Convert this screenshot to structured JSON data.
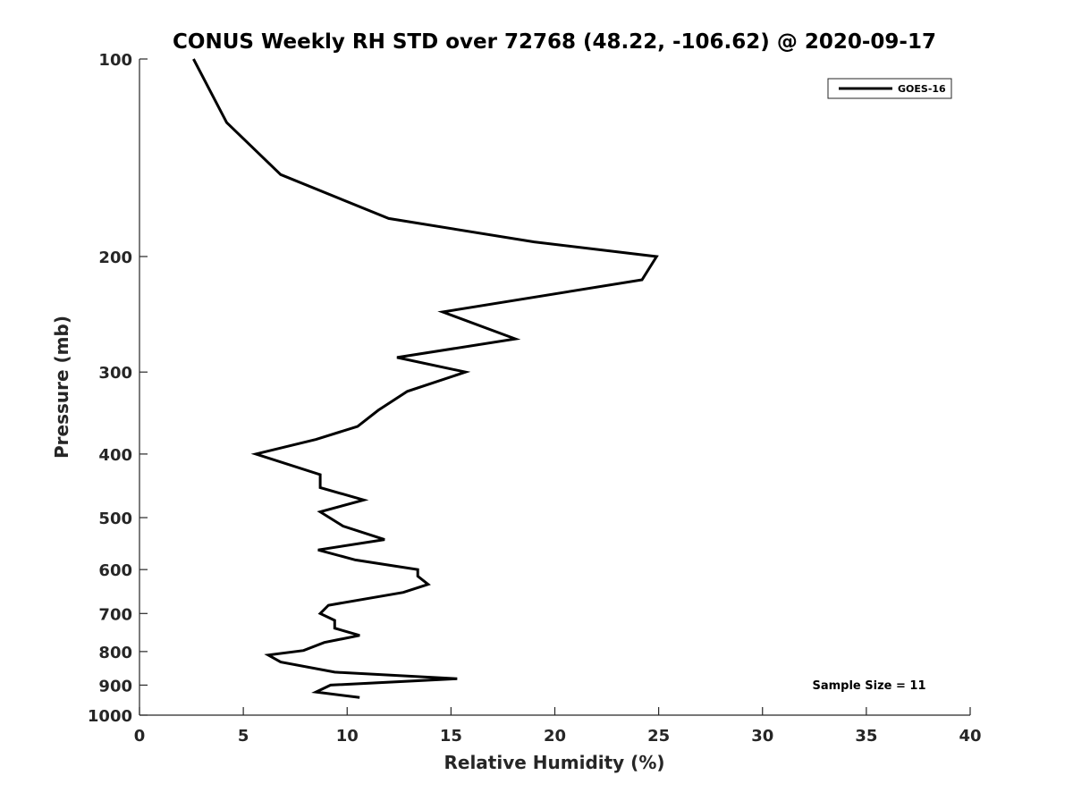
{
  "chart_data": {
    "type": "line",
    "title": "CONUS Weekly RH STD over 72768 (48.22, -106.62) @ 2020-09-17",
    "xlabel": "Relative Humidity (%)",
    "ylabel": "Pressure (mb)",
    "xlim": [
      0,
      40
    ],
    "ylim": [
      100,
      1000
    ],
    "y_scale": "log",
    "y_reversed": true,
    "x_ticks": [
      0,
      5,
      10,
      15,
      20,
      25,
      30,
      35,
      40
    ],
    "x_tick_labels": [
      "0",
      "5",
      "10",
      "15",
      "20",
      "25",
      "30",
      "35",
      "40"
    ],
    "y_ticks": [
      100,
      200,
      300,
      400,
      500,
      600,
      700,
      800,
      900,
      1000
    ],
    "y_tick_labels": [
      "100",
      "200",
      "300",
      "400",
      "500",
      "600",
      "700",
      "800",
      "900",
      "1000"
    ],
    "grid": false,
    "legend_position": "top-right",
    "annotation": "Sample Size = 11",
    "series": [
      {
        "name": "GOES-16",
        "color": "#000000",
        "x": [
          2.6,
          4.2,
          6.8,
          12.0,
          19.0,
          24.9,
          24.2,
          14.6,
          18.1,
          12.4,
          15.7,
          12.9,
          11.5,
          10.5,
          8.5,
          5.6,
          8.7,
          8.7,
          10.8,
          8.7,
          9.8,
          11.8,
          8.6,
          10.4,
          13.4,
          13.4,
          13.9,
          12.7,
          9.1,
          8.7,
          9.4,
          9.4,
          10.6,
          8.9,
          7.9,
          6.2,
          6.8,
          9.4,
          15.3,
          9.2,
          8.5,
          10.6
        ],
        "y": [
          100,
          125,
          150,
          175,
          190,
          200,
          217,
          243,
          267,
          285,
          300,
          321,
          343,
          363,
          380,
          400,
          430,
          450,
          470,
          490,
          515,
          540,
          560,
          580,
          600,
          614,
          632,
          650,
          680,
          700,
          717,
          737,
          756,
          775,
          797,
          810,
          830,
          860,
          880,
          900,
          922,
          940
        ]
      }
    ]
  }
}
